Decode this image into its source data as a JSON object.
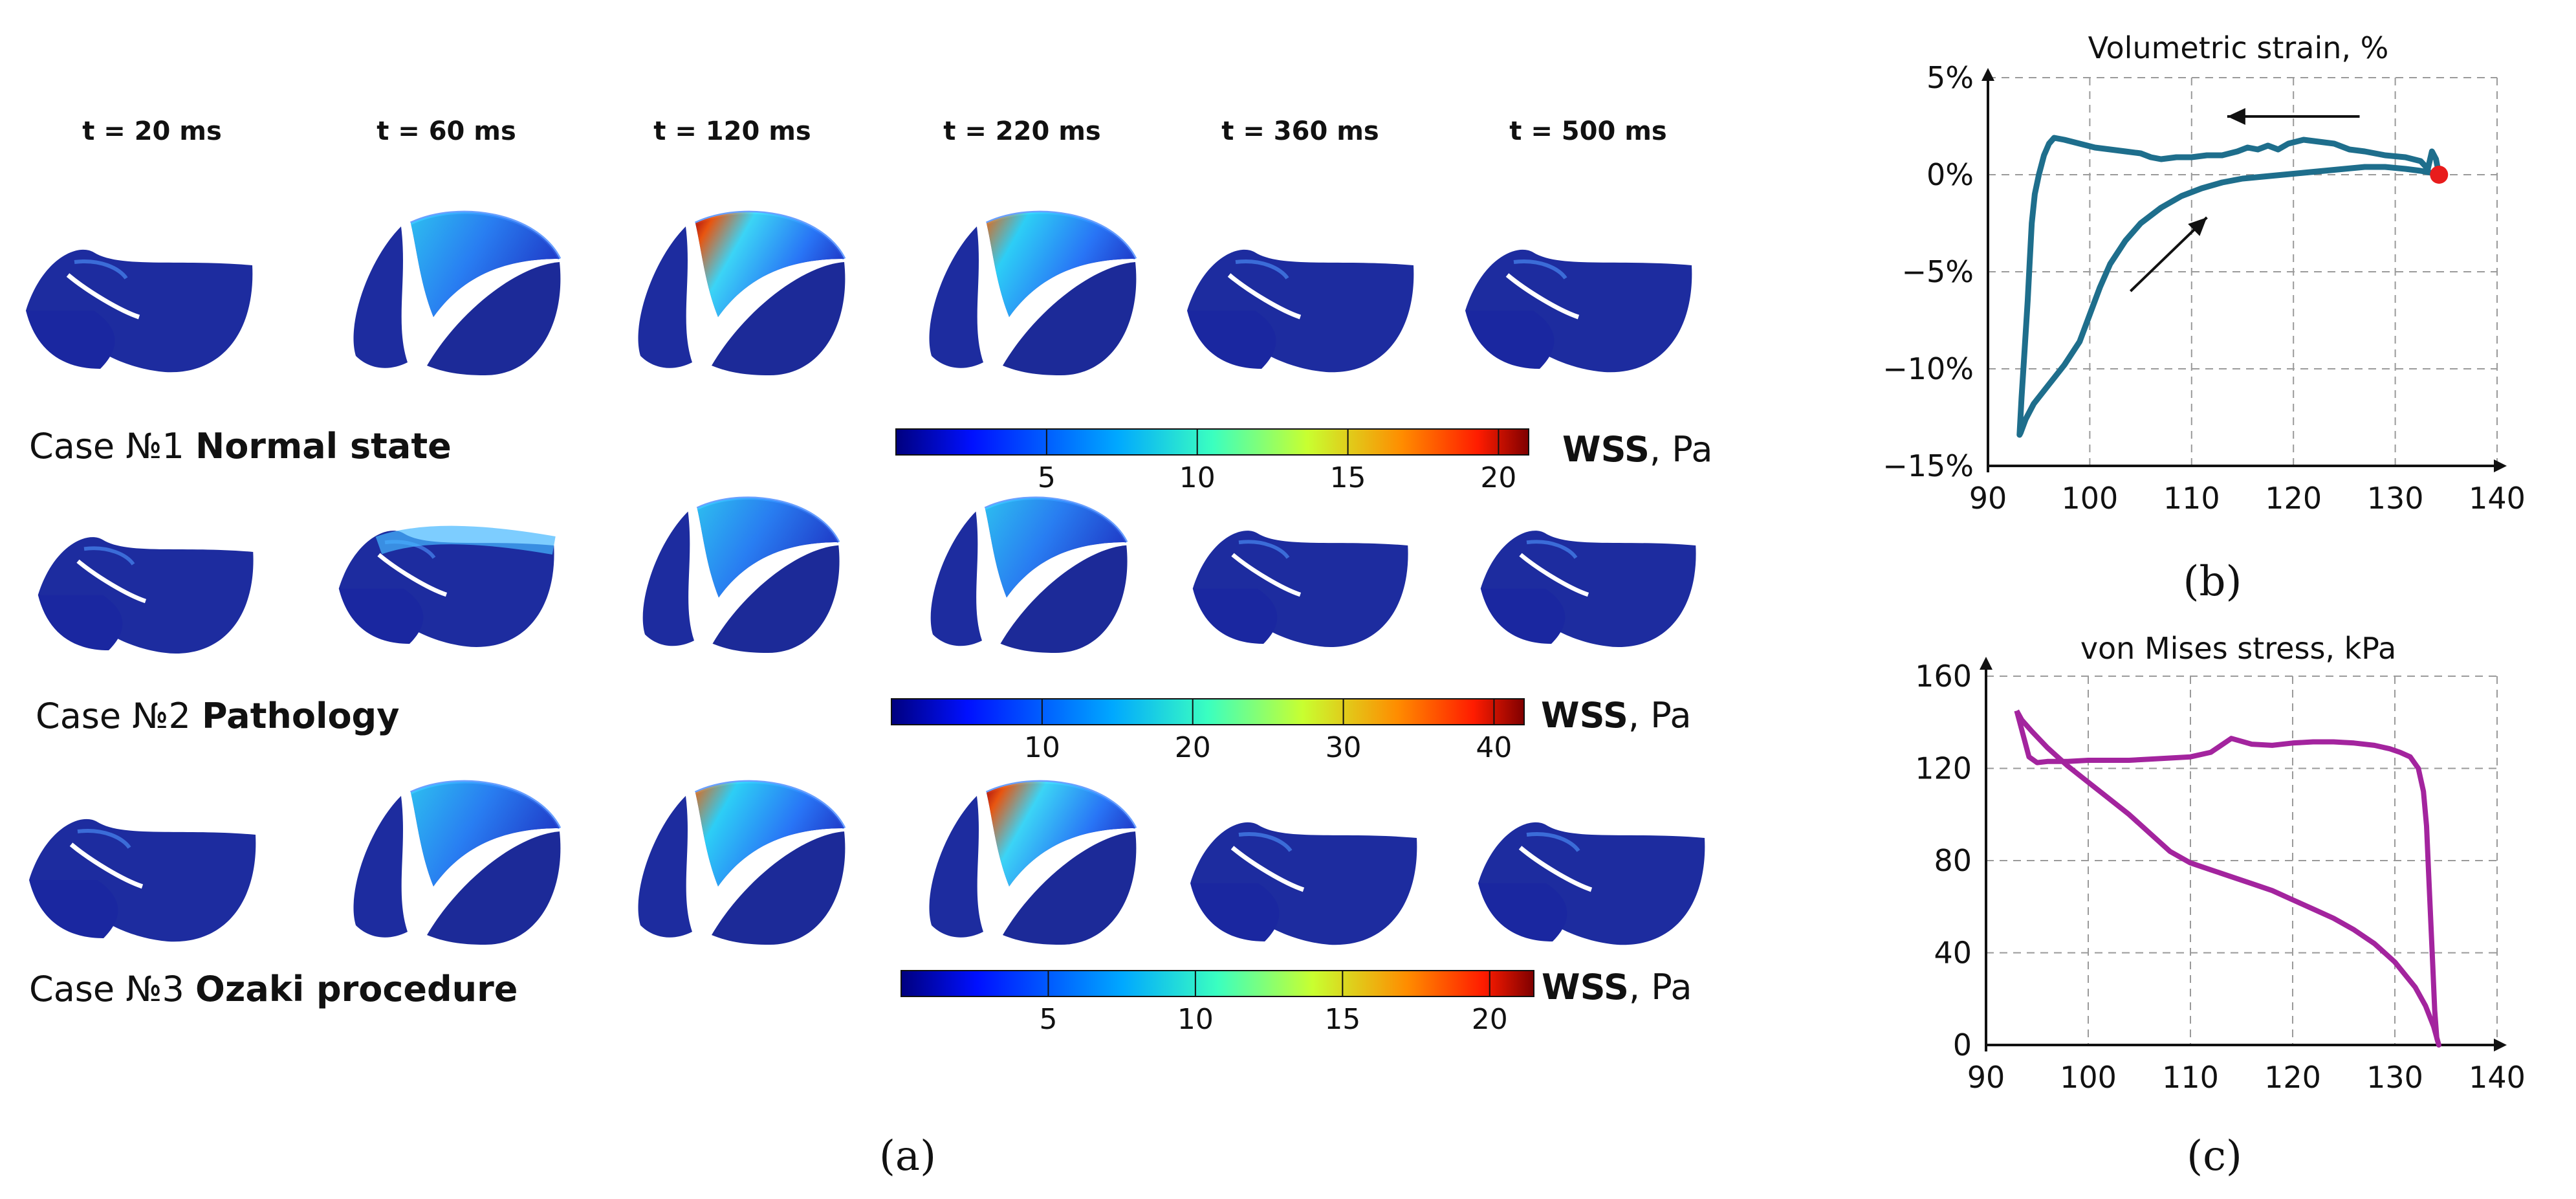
{
  "panel_a": {
    "time_labels": [
      "t = 20 ms",
      "t = 60 ms",
      "t = 120 ms",
      "t = 220 ms",
      "t = 360 ms",
      "t = 500 ms"
    ],
    "cases": [
      {
        "prefix": "Case №1",
        "name": "Normal state",
        "colorbar_ticks": [
          "5",
          "10",
          "15",
          "20"
        ],
        "colorbar_max": 21
      },
      {
        "prefix": "Case №2",
        "name": "Pathology",
        "colorbar_ticks": [
          "10",
          "20",
          "30",
          "40"
        ],
        "colorbar_max": 42
      },
      {
        "prefix": "Case №3",
        "name": "Ozaki procedure",
        "colorbar_ticks": [
          "5",
          "10",
          "15",
          "20"
        ],
        "colorbar_max": 21.5
      }
    ],
    "colorbar_quantity": "WSS",
    "colorbar_unit": ", Pa",
    "label": "(a)"
  },
  "chart_data": [
    {
      "type": "line",
      "title": "Volumetric strain, %",
      "xlabel": "",
      "ylabel": "",
      "xlim": [
        90,
        140
      ],
      "ylim": [
        -15,
        5
      ],
      "x_ticks": [
        "90",
        "100",
        "110",
        "120",
        "130",
        "140"
      ],
      "y_ticks": [
        "5%",
        "0%",
        "−5%",
        "−10%",
        "−15%"
      ],
      "grid": true,
      "series": [
        {
          "name": "volumetric strain",
          "color": "#1e6e8c",
          "x": [
            134.3,
            134.0,
            133.6,
            133.2,
            132.5,
            131.0,
            129.0,
            127.0,
            125.5,
            124.0,
            122.5,
            121.0,
            119.5,
            118.5,
            117.5,
            116.5,
            115.5,
            114.5,
            113.0,
            111.5,
            110.0,
            108.5,
            107.0,
            106.0,
            105.0,
            103.5,
            102.0,
            100.5,
            99.0,
            97.5,
            96.5,
            96.0,
            95.5,
            95.0,
            94.6,
            94.3,
            94.1,
            93.9,
            93.6,
            93.3,
            93.1,
            93.2,
            93.7,
            94.5,
            96.0,
            97.5,
            99.0,
            100.0,
            101.0,
            102.0,
            103.5,
            105.0,
            107.0,
            109.0,
            111.0,
            113.0,
            115.0,
            117.0,
            119.0,
            121.0,
            123.0,
            125.0,
            127.0,
            129.0,
            131.0,
            132.5,
            133.5,
            134.3
          ],
          "y": [
            0.0,
            0.8,
            1.2,
            0.3,
            0.7,
            0.9,
            1.0,
            1.2,
            1.3,
            1.6,
            1.7,
            1.8,
            1.6,
            1.3,
            1.5,
            1.3,
            1.4,
            1.2,
            1.0,
            1.0,
            0.9,
            0.9,
            0.8,
            0.9,
            1.1,
            1.2,
            1.3,
            1.4,
            1.6,
            1.8,
            1.9,
            1.6,
            1.0,
            0.0,
            -1.0,
            -2.5,
            -4.5,
            -6.5,
            -9.0,
            -11.5,
            -13.4,
            -13.3,
            -12.6,
            -11.8,
            -10.8,
            -9.8,
            -8.6,
            -7.2,
            -5.8,
            -4.6,
            -3.4,
            -2.5,
            -1.7,
            -1.1,
            -0.7,
            -0.4,
            -0.2,
            -0.1,
            0.0,
            0.1,
            0.2,
            0.3,
            0.4,
            0.4,
            0.3,
            0.2,
            0.1,
            0.0
          ]
        }
      ],
      "start_marker": {
        "x": 134.3,
        "y": 0.0,
        "color": "#e81c1c"
      },
      "annotations": [
        {
          "type": "arrow",
          "from": [
            126.5,
            3.0
          ],
          "to": [
            113.5,
            3.0
          ]
        },
        {
          "type": "arrow",
          "from": [
            104.0,
            -6.0
          ],
          "to": [
            111.5,
            -2.2
          ]
        }
      ],
      "label": "(b)"
    },
    {
      "type": "line",
      "title": "von Mises stress, kPa",
      "xlabel": "",
      "ylabel": "",
      "xlim": [
        90,
        140
      ],
      "ylim": [
        0,
        160
      ],
      "x_ticks": [
        "90",
        "100",
        "110",
        "120",
        "130",
        "140"
      ],
      "y_ticks": [
        "160",
        "120",
        "80",
        "40",
        "0"
      ],
      "grid": true,
      "series": [
        {
          "name": "von Mises stress",
          "color": "#a3249e",
          "x": [
            93.0,
            93.6,
            94.2,
            95.0,
            96.0,
            97.0,
            98.0,
            100.0,
            102.0,
            104.0,
            106.0,
            108.0,
            110.0,
            112.0,
            114.0,
            116.0,
            118.0,
            120.0,
            122.0,
            124.0,
            126.0,
            128.0,
            129.5,
            130.5,
            131.5,
            132.3,
            132.8,
            133.1,
            133.3,
            133.5,
            133.7,
            133.9,
            134.1,
            134.3,
            133.8,
            133.0,
            132.0,
            130.0,
            128.0,
            126.0,
            124.0,
            122.0,
            120.0,
            118.0,
            116.0,
            114.0,
            112.0,
            110.0,
            108.0,
            106.0,
            104.0,
            102.0,
            100.0,
            98.0,
            96.0,
            94.5,
            93.5,
            93.0
          ],
          "y": [
            145.0,
            135.0,
            125.0,
            122.5,
            123.0,
            123.0,
            123.0,
            123.5,
            123.5,
            123.5,
            124.0,
            124.5,
            125.0,
            127.0,
            133.0,
            130.5,
            130.0,
            131.0,
            131.5,
            131.5,
            131.0,
            130.0,
            128.5,
            127.0,
            125.0,
            120.0,
            110.0,
            95.0,
            75.0,
            55.0,
            35.0,
            15.0,
            3.0,
            0.0,
            8.0,
            17.0,
            25.0,
            36.0,
            44.0,
            50.0,
            55.0,
            59.0,
            63.0,
            67.0,
            70.0,
            73.0,
            76.0,
            79.0,
            84.0,
            92.0,
            100.0,
            107.0,
            114.0,
            121.0,
            129.0,
            136.0,
            141.0,
            145.0
          ]
        }
      ],
      "label": "(c)"
    }
  ]
}
